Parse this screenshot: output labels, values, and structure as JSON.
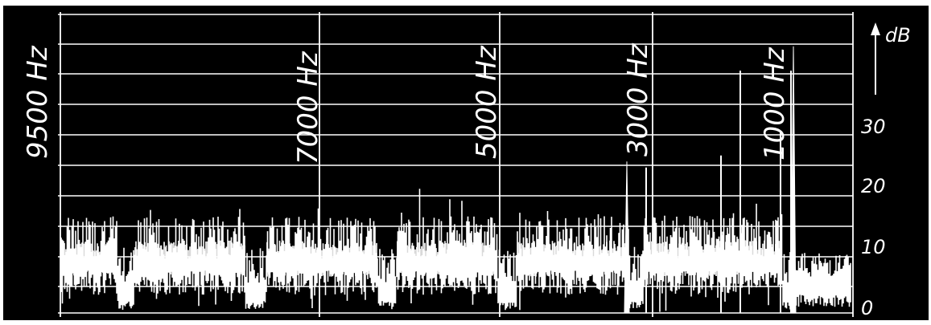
{
  "chart_data": {
    "type": "area",
    "title": "",
    "xlabel": "",
    "ylabel": "dB",
    "ylim": [
      0,
      44
    ],
    "grid": true,
    "frequency_labels": [
      "9500 Hz",
      "7000 Hz",
      "5000 Hz",
      "3000 Hz",
      "1000 Hz"
    ],
    "y_ticks": [
      "0",
      "10",
      "20",
      "30"
    ],
    "noise_floor_db": 12,
    "peaks": [
      {
        "frequency": "3000 Hz",
        "db": 25
      },
      {
        "frequency": "1000 Hz",
        "db": 44
      }
    ],
    "colors": {
      "background": "#000000",
      "trace": "#ffffff",
      "grid": "#ffffff"
    }
  }
}
